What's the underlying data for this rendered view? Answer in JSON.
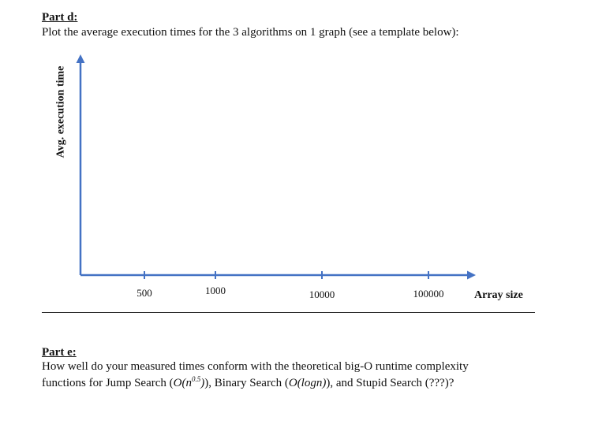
{
  "part_d": {
    "title": "Part d:",
    "instruction": "Plot the average execution times for the 3 algorithms on 1 graph (see a template below):"
  },
  "chart_data": {
    "type": "line",
    "title": "",
    "xlabel": "Array size",
    "ylabel": "Avg. execution time",
    "categories": [
      "500",
      "1000",
      "10000",
      "100000"
    ],
    "series": [],
    "grid": false,
    "axis_color": "#4472C4"
  },
  "part_e": {
    "title": "Part e:",
    "question_line1": "How well do your measured times conform with the theoretical big-O runtime complexity",
    "q2_pre": "functions for Jump Search (",
    "q2_jump_o": "O(n",
    "q2_jump_exp": "0.5",
    "q2_jump_close": ")",
    "q2_mid": "), Binary Search (",
    "q2_binary": "O(logn)",
    "q2_post": "), and Stupid Search (???)?"
  }
}
